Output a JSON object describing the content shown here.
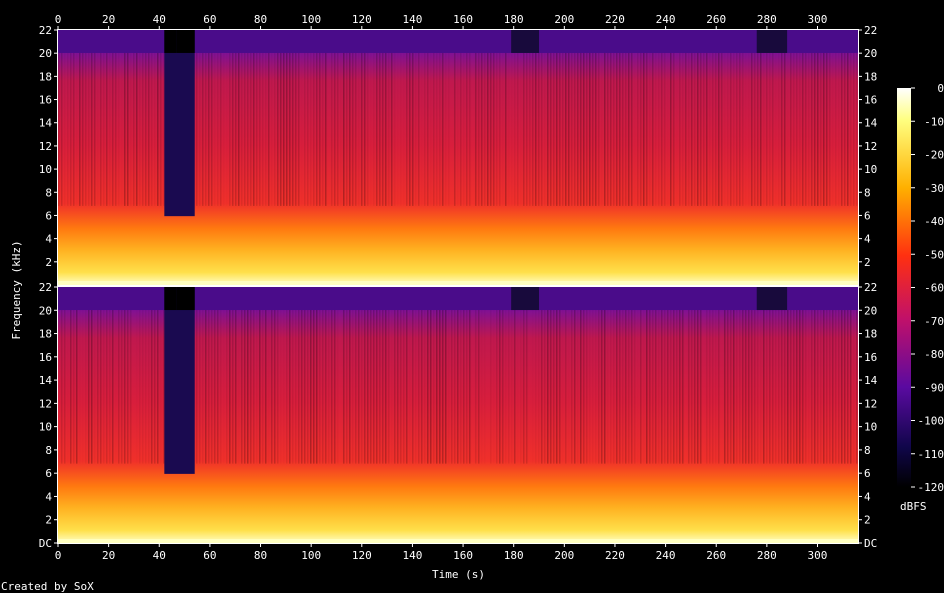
{
  "chart_data": {
    "type": "heatmap",
    "title": "",
    "xlabel": "Time (s)",
    "ylabel": "Frequency (kHz)",
    "xlim": [
      0,
      316
    ],
    "x_ticks": [
      "0",
      "20",
      "40",
      "60",
      "80",
      "100",
      "120",
      "140",
      "160",
      "180",
      "200",
      "220",
      "240",
      "260",
      "280",
      "300"
    ],
    "y_ticks": [
      "DC",
      "2",
      "4",
      "6",
      "8",
      "10",
      "12",
      "14",
      "16",
      "18",
      "20",
      "22"
    ],
    "y_ticks_top": [
      "2",
      "4",
      "6",
      "8",
      "10",
      "12",
      "14",
      "16",
      "18",
      "20",
      "22"
    ],
    "channels": 2,
    "colorbar": {
      "label": "dBFS",
      "ticks": [
        "0",
        "-10",
        "-20",
        "-30",
        "-40",
        "-50",
        "-60",
        "-70",
        "-80",
        "-90",
        "-100",
        "-110",
        "-120"
      ]
    },
    "quiet_segments_s": [
      [
        42,
        54
      ],
      [
        179,
        190
      ],
      [
        276,
        288
      ]
    ],
    "footer": "Created by SoX"
  }
}
